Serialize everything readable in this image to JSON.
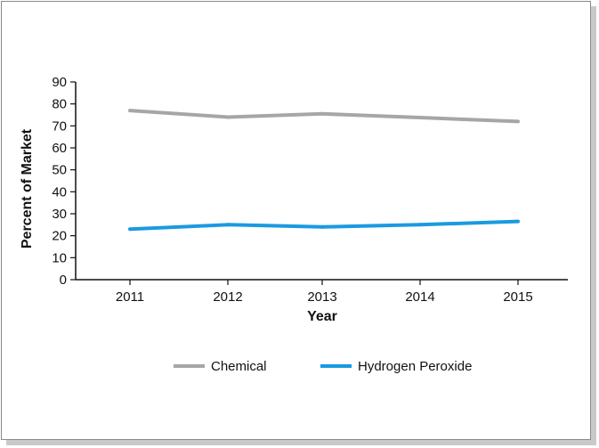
{
  "chart_data": {
    "type": "line",
    "title": "",
    "xlabel": "Year",
    "ylabel": "Percent of Market",
    "categories": [
      "2011",
      "2012",
      "2013",
      "2014",
      "2015"
    ],
    "ylim": [
      0,
      90
    ],
    "yticks": [
      0,
      10,
      20,
      30,
      40,
      50,
      60,
      70,
      80,
      90
    ],
    "grid": false,
    "legend_position": "bottom",
    "series": [
      {
        "name": "Chemical",
        "color": "#a6a6a6",
        "values": [
          77,
          74,
          75.5,
          73.8,
          72
        ]
      },
      {
        "name": "Hydrogen Peroxide",
        "color": "#1a9ae0",
        "values": [
          23,
          25,
          24,
          25,
          26.5
        ]
      }
    ]
  }
}
